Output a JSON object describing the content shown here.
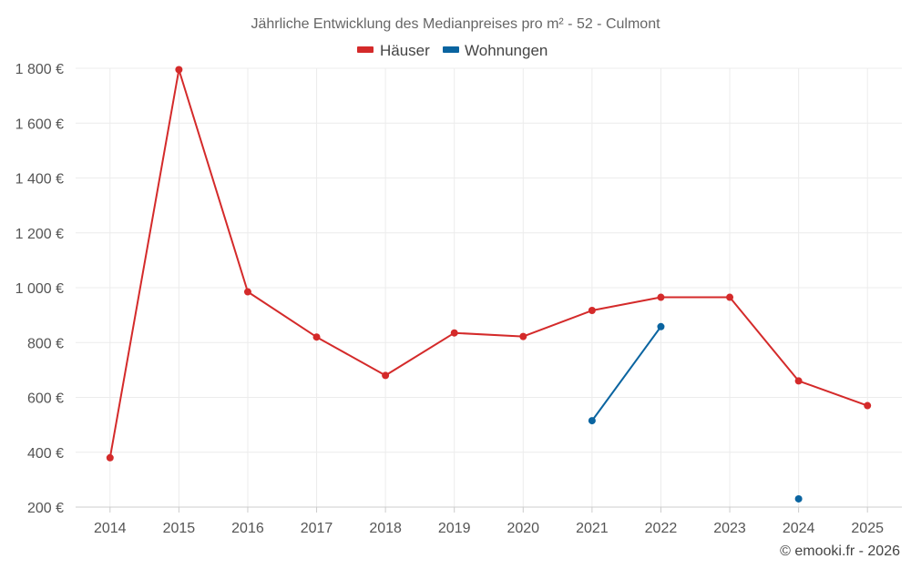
{
  "chart_data": {
    "type": "line",
    "title": "Jährliche Entwicklung des Medianpreises pro m² - 52 - Culmont",
    "x": [
      "2014",
      "2015",
      "2016",
      "2017",
      "2018",
      "2019",
      "2020",
      "2021",
      "2022",
      "2023",
      "2024",
      "2025"
    ],
    "series": [
      {
        "name": "Häuser",
        "color": "#d42a2a",
        "values": [
          380,
          1795,
          985,
          820,
          680,
          835,
          822,
          917,
          965,
          965,
          660,
          570
        ]
      },
      {
        "name": "Wohnungen",
        "color": "#0a64a0",
        "values": [
          null,
          null,
          null,
          null,
          null,
          null,
          null,
          515,
          858,
          null,
          230,
          null
        ]
      }
    ],
    "ylim": [
      200,
      1800
    ],
    "yticks": [
      200,
      400,
      600,
      800,
      1000,
      1200,
      1400,
      1600,
      1800
    ],
    "ytick_labels": [
      "200 €",
      "400 €",
      "600 €",
      "800 €",
      "1 000 €",
      "1 200 €",
      "1 400 €",
      "1 600 €",
      "1 800 €"
    ],
    "grid": true,
    "legend_position": "top-center",
    "credit": "© emooki.fr - 2026"
  }
}
